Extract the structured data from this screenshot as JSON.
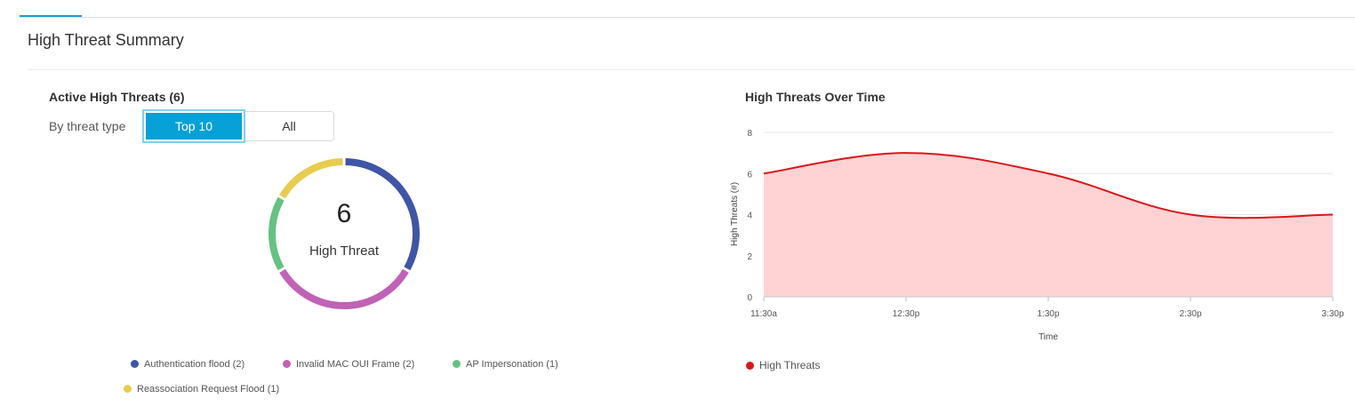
{
  "page": {
    "title": "High Threat Summary"
  },
  "active_threats": {
    "title": "Active High Threats (6)",
    "filter_label": "By threat type",
    "filter_options": [
      "Top 10",
      "All"
    ],
    "selected_filter": "Top 10",
    "total": "6",
    "total_label": "High Threat",
    "legend": [
      {
        "label": "Authentication flood (2)",
        "color": "#3f55a5",
        "value": 2
      },
      {
        "label": "Invalid MAC OUI Frame (2)",
        "color": "#c062b6",
        "value": 2
      },
      {
        "label": "AP Impersonation (1)",
        "color": "#66c182",
        "value": 1
      },
      {
        "label": "Reassociation Request Flood (1)",
        "color": "#e6cd4f",
        "value": 1
      }
    ]
  },
  "over_time": {
    "title": "High Threats Over Time",
    "legend_label": "High Threats",
    "line_color": "#d9161c",
    "fill_color": "#ffd3d3"
  },
  "chart_data": [
    {
      "type": "pie",
      "categories": [
        "Authentication flood",
        "Invalid MAC OUI Frame",
        "AP Impersonation",
        "Reassociation Request Flood"
      ],
      "values": [
        2,
        2,
        1,
        1
      ],
      "colors": [
        "#3f55a5",
        "#c062b6",
        "#66c182",
        "#e6cd4f"
      ]
    },
    {
      "type": "area",
      "x": [
        "11:30a",
        "12:30p",
        "1:30p",
        "2:30p",
        "3:30p"
      ],
      "series": [
        {
          "name": "High Threats",
          "values": [
            6,
            7,
            6,
            4,
            4
          ]
        }
      ],
      "xlabel": "Time",
      "ylabel": "High Threats (#)",
      "ylim": [
        0,
        8
      ],
      "yticks": [
        0,
        2,
        4,
        6,
        8
      ],
      "grid": true,
      "legend": "bottom-left"
    }
  ]
}
